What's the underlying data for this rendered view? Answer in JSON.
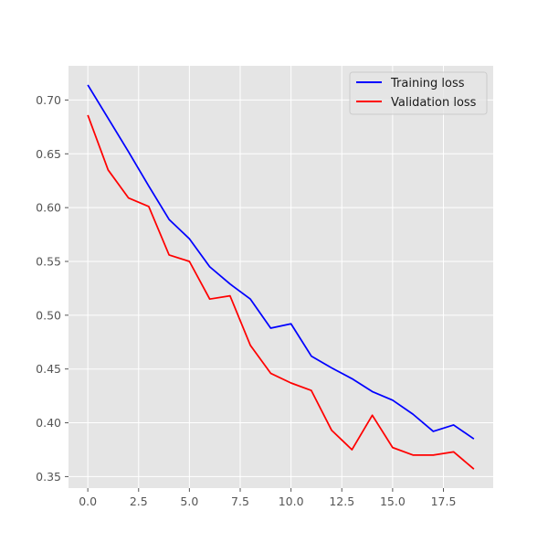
{
  "chart_data": {
    "type": "line",
    "title": "",
    "xlabel": "",
    "ylabel": "",
    "x": [
      0,
      1,
      2,
      3,
      4,
      5,
      6,
      7,
      8,
      9,
      10,
      11,
      12,
      13,
      14,
      15,
      16,
      17,
      18,
      19
    ],
    "series": [
      {
        "name": "Training loss",
        "color": "#0000ff",
        "values": [
          0.714,
          0.683,
          0.652,
          0.62,
          0.589,
          0.571,
          0.545,
          0.529,
          0.515,
          0.488,
          0.492,
          0.462,
          0.451,
          0.441,
          0.429,
          0.421,
          0.408,
          0.392,
          0.398,
          0.385
        ]
      },
      {
        "name": "Validation loss",
        "color": "#ff0000",
        "values": [
          0.686,
          0.635,
          0.609,
          0.601,
          0.556,
          0.55,
          0.515,
          0.518,
          0.472,
          0.446,
          0.437,
          0.43,
          0.393,
          0.375,
          0.407,
          0.377,
          0.37,
          0.37,
          0.373,
          0.357
        ]
      }
    ],
    "xlim": [
      -0.95,
      19.95
    ],
    "ylim": [
      0.3393,
      0.7318
    ],
    "xticks": [
      0.0,
      2.5,
      5.0,
      7.5,
      10.0,
      12.5,
      15.0,
      17.5
    ],
    "xtick_labels": [
      "0.0",
      "2.5",
      "5.0",
      "7.5",
      "10.0",
      "12.5",
      "15.0",
      "17.5"
    ],
    "yticks": [
      0.35,
      0.4,
      0.45,
      0.5,
      0.55,
      0.6,
      0.65,
      0.7
    ],
    "ytick_labels": [
      "0.35",
      "0.40",
      "0.45",
      "0.50",
      "0.55",
      "0.60",
      "0.65",
      "0.70"
    ],
    "grid": true,
    "legend_position": "top-right",
    "style": {
      "plot_background": "#e5e5e5",
      "grid_color": "#ffffff",
      "tick_color": "#555555"
    }
  }
}
